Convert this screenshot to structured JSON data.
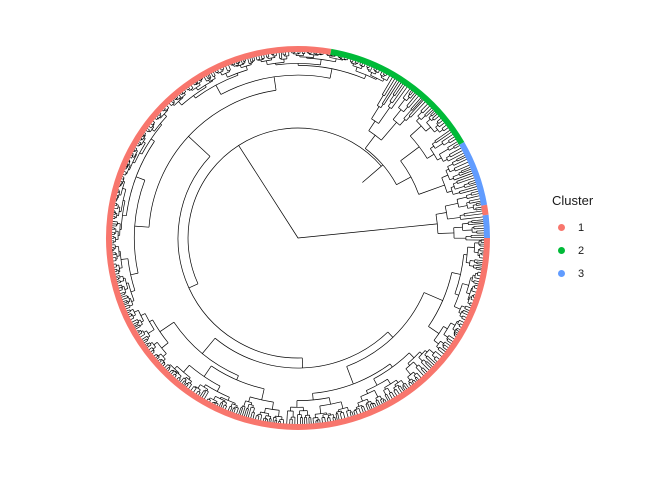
{
  "chart_data": {
    "type": "dendrogram",
    "layout": "circular",
    "legend": {
      "title": "Cluster",
      "placement": "right",
      "entries": [
        {
          "label": "1",
          "color": "#F8766D"
        },
        {
          "label": "2",
          "color": "#00BA38"
        },
        {
          "label": "3",
          "color": "#619CFF"
        }
      ]
    },
    "cluster_arcs_degrees_clockwise_from_right": [
      {
        "cluster": "3",
        "from": 353,
        "to": 360
      },
      {
        "cluster": "1",
        "from": 0,
        "to": 280
      },
      {
        "cluster": "2",
        "from": 280,
        "to": 330
      },
      {
        "cluster": "3",
        "from": 330,
        "to": 350
      },
      {
        "cluster": "1",
        "from": 350,
        "to": 353
      }
    ],
    "grid": false,
    "axes_visible": false
  }
}
